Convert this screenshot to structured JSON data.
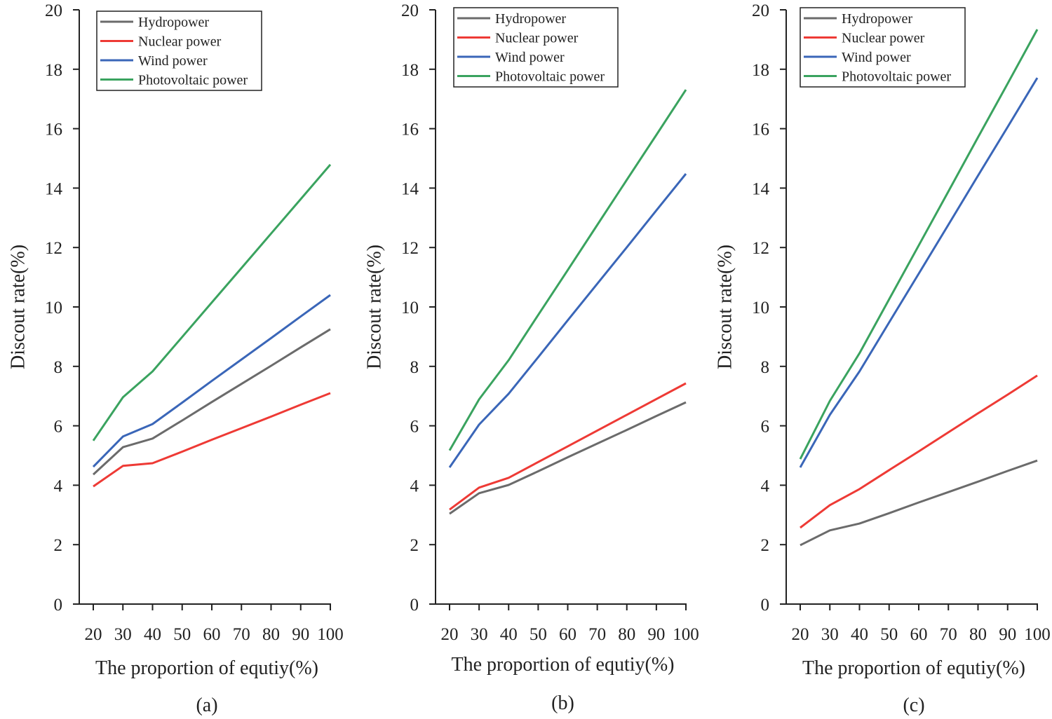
{
  "chart_data": [
    {
      "type": "line",
      "caption": "(a)",
      "xlabel": "The proportion of equtiy(%)",
      "ylabel": "Discout rate(%)",
      "x": [
        20,
        30,
        40,
        50,
        60,
        70,
        80,
        90,
        100
      ],
      "ylim": [
        0,
        20
      ],
      "yticks": [
        0,
        2,
        4,
        6,
        8,
        10,
        12,
        14,
        16,
        18,
        20
      ],
      "grid": false,
      "legend_position": "top-left",
      "series": [
        {
          "name": "Hydropower",
          "color": "#6b6b6b",
          "values": [
            4.36,
            5.28,
            5.57,
            6.18,
            6.8,
            7.41,
            8.02,
            8.64,
            9.25
          ]
        },
        {
          "name": "Nuclear power",
          "color": "#ee3a35",
          "values": [
            3.96,
            4.65,
            4.74,
            5.13,
            5.53,
            5.92,
            6.31,
            6.71,
            7.1
          ]
        },
        {
          "name": "Wind power",
          "color": "#3a66b8",
          "values": [
            4.62,
            5.64,
            6.06,
            6.78,
            7.51,
            8.23,
            8.95,
            9.68,
            10.4
          ]
        },
        {
          "name": "Photovoltaic power",
          "color": "#3aa35f",
          "values": [
            5.5,
            6.96,
            7.83,
            8.99,
            10.15,
            11.31,
            12.47,
            13.63,
            14.79
          ]
        }
      ]
    },
    {
      "type": "line",
      "caption": "(b)",
      "xlabel": "The proportion of equtiy(%)",
      "ylabel": "Discout rate(%)",
      "x": [
        20,
        30,
        40,
        50,
        60,
        70,
        80,
        90,
        100
      ],
      "ylim": [
        0,
        20
      ],
      "yticks": [
        0,
        2,
        4,
        6,
        8,
        10,
        12,
        14,
        16,
        18,
        20
      ],
      "grid": false,
      "legend_position": "top-left",
      "series": [
        {
          "name": "Hydropower",
          "color": "#6b6b6b",
          "values": [
            3.04,
            3.73,
            4.01,
            4.47,
            4.94,
            5.4,
            5.86,
            6.33,
            6.79
          ]
        },
        {
          "name": "Nuclear power",
          "color": "#ee3a35",
          "values": [
            3.18,
            3.92,
            4.25,
            4.78,
            5.31,
            5.84,
            6.37,
            6.9,
            7.43
          ]
        },
        {
          "name": "Wind power",
          "color": "#3a66b8",
          "values": [
            4.6,
            6.04,
            7.08,
            8.31,
            9.55,
            10.78,
            12.01,
            13.25,
            14.48
          ]
        },
        {
          "name": "Photovoltaic power",
          "color": "#3aa35f",
          "values": [
            5.17,
            6.89,
            8.21,
            9.73,
            11.24,
            12.76,
            14.28,
            15.79,
            17.31
          ]
        }
      ]
    },
    {
      "type": "line",
      "caption": "(c)",
      "xlabel": "The proportion of equtiy(%)",
      "ylabel": "Discout rate(%)",
      "x": [
        20,
        30,
        40,
        50,
        60,
        70,
        80,
        90,
        100
      ],
      "ylim": [
        0,
        20
      ],
      "yticks": [
        0,
        2,
        4,
        6,
        8,
        10,
        12,
        14,
        16,
        18,
        20
      ],
      "grid": false,
      "legend_position": "top-left",
      "series": [
        {
          "name": "Hydropower",
          "color": "#6b6b6b",
          "values": [
            1.98,
            2.48,
            2.71,
            3.06,
            3.42,
            3.77,
            4.12,
            4.48,
            4.83
          ]
        },
        {
          "name": "Nuclear power",
          "color": "#ee3a35",
          "values": [
            2.57,
            3.33,
            3.87,
            4.51,
            5.14,
            5.78,
            6.42,
            7.05,
            7.69
          ]
        },
        {
          "name": "Wind power",
          "color": "#3a66b8",
          "values": [
            4.6,
            6.37,
            7.83,
            9.48,
            11.12,
            12.77,
            14.42,
            16.06,
            17.71
          ]
        },
        {
          "name": "Photovoltaic power",
          "color": "#3aa35f",
          "values": [
            4.88,
            6.84,
            8.44,
            10.26,
            12.07,
            13.89,
            15.71,
            17.52,
            19.34
          ]
        }
      ]
    }
  ]
}
